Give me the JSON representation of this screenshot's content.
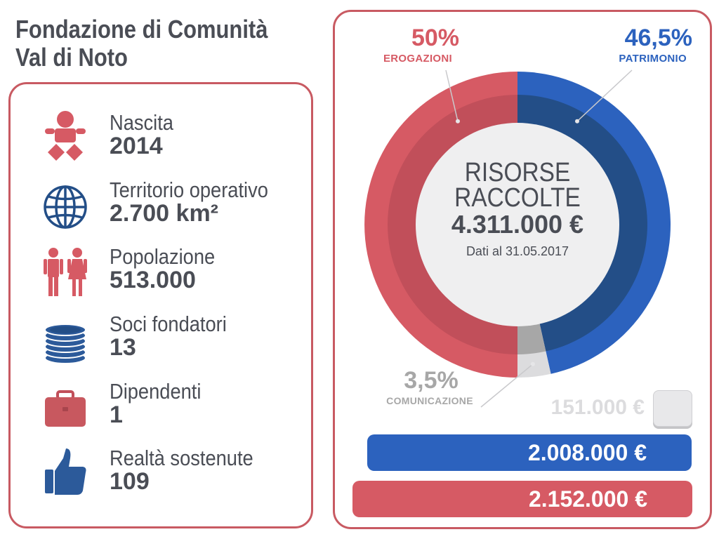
{
  "header": {
    "line1": "Fondazione di Comunità",
    "line2": "Val di Noto"
  },
  "stats": [
    {
      "label": "Nascita",
      "value": "2014",
      "icon": "baby-icon"
    },
    {
      "label": "Territorio operativo",
      "value": "2.700 km²",
      "icon": "globe-icon"
    },
    {
      "label": "Popolazione",
      "value": "513.000",
      "icon": "people-icon"
    },
    {
      "label": "Soci fondatori",
      "value": "13",
      "icon": "coin-stack-icon"
    },
    {
      "label": "Dipendenti",
      "value": "1",
      "icon": "briefcase-icon"
    },
    {
      "label": "Realtà sostenute",
      "value": "109",
      "icon": "thumbs-up-icon"
    }
  ],
  "colors": {
    "red": "#d65a64",
    "red_dark": "#c14f5a",
    "blue": "#2c62be",
    "blue_dark": "#234e87",
    "gray": "#dcdcde",
    "gray_dark": "#a7a7a7",
    "text": "#4a4d55",
    "center_bg": "#efeff0"
  },
  "chart_data": {
    "type": "pie",
    "center": {
      "line1": "RISORSE",
      "line2": "RACCOLTE",
      "total": "4.311.000 €",
      "note": "Dati al 31.05.2017"
    },
    "slices": [
      {
        "label": "PATRIMONIO",
        "percent_label": "46,5%",
        "value": 46.5,
        "amount": 2008000,
        "amount_label": "2.008.000 €"
      },
      {
        "label": "COMUNICAZIONE",
        "percent_label": "3,5%",
        "value": 3.5,
        "amount": 151000,
        "amount_label": "151.000 €"
      },
      {
        "label": "EROGAZIONI",
        "percent_label": "50%",
        "value": 50,
        "amount": 2152000,
        "amount_label": "2.152.000 €"
      }
    ]
  }
}
